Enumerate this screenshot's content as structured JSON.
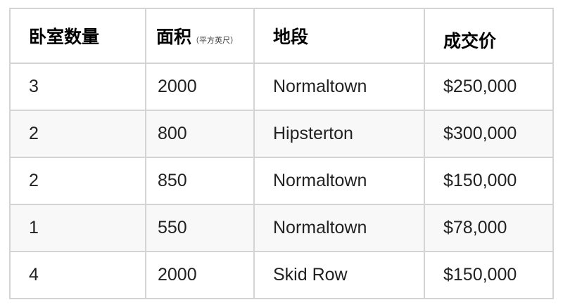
{
  "table": {
    "headers": [
      "卧室数量",
      "面积",
      "地段",
      "成交价"
    ],
    "area_unit": "（平方英尺）",
    "rows": [
      [
        "3",
        "2000",
        "Normaltown",
        "$250,000"
      ],
      [
        "2",
        "800",
        "Hipsterton",
        "$300,000"
      ],
      [
        "2",
        "850",
        "Normaltown",
        "$150,000"
      ],
      [
        "1",
        "550",
        "Normaltown",
        "$78,000"
      ],
      [
        "4",
        "2000",
        "Skid Row",
        "$150,000"
      ]
    ]
  }
}
